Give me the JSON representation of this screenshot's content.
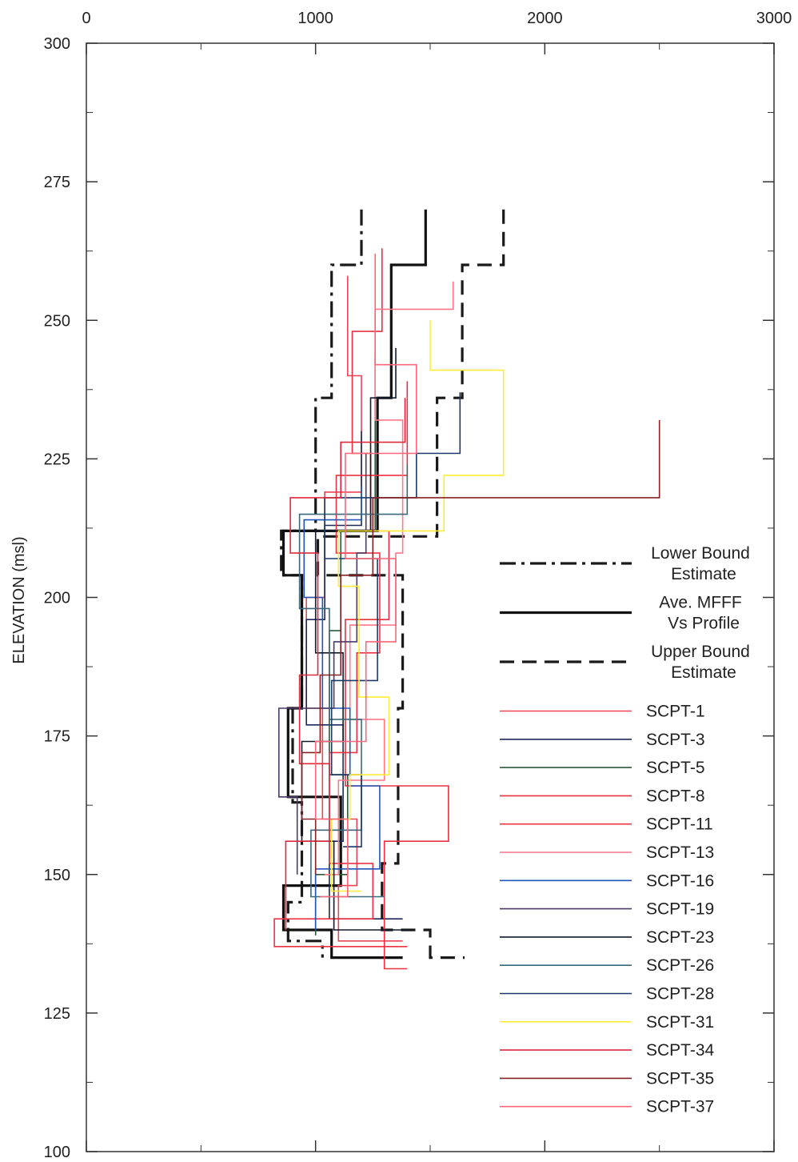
{
  "chart_data": {
    "type": "line",
    "title": "",
    "xlabel": "",
    "ylabel": "ELEVATION (msl)",
    "xlim": [
      0,
      3000
    ],
    "ylim": [
      100,
      300
    ],
    "x_ticks": [
      0,
      1000,
      2000,
      3000
    ],
    "x_tick_labels": [
      "0",
      "1000",
      "2000",
      "3000"
    ],
    "y_ticks": [
      100,
      125,
      150,
      175,
      200,
      225,
      250,
      275,
      300
    ],
    "y_tick_labels": [
      "100",
      "125",
      "150",
      "175",
      "200",
      "225",
      "250",
      "275",
      "300"
    ],
    "grid": false,
    "legend_position": "right",
    "series": [
      {
        "name": "Lower Bound Estimate",
        "color": "#1a1a1a",
        "dash": "dashdot",
        "points": [
          [
            1200,
            270
          ],
          [
            1200,
            260
          ],
          [
            1070,
            260
          ],
          [
            1070,
            236
          ],
          [
            1000,
            236
          ],
          [
            1000,
            212
          ],
          [
            850,
            212
          ],
          [
            850,
            204
          ],
          [
            940,
            204
          ],
          [
            940,
            180
          ],
          [
            900,
            180
          ],
          [
            900,
            163
          ],
          [
            940,
            163
          ],
          [
            940,
            145
          ],
          [
            880,
            145
          ],
          [
            880,
            138
          ],
          [
            1030,
            138
          ],
          [
            1030,
            135
          ]
        ]
      },
      {
        "name": "Ave. MFFF Vs Profile",
        "color": "#111111",
        "dash": "solid",
        "points": [
          [
            1480,
            270
          ],
          [
            1480,
            260
          ],
          [
            1330,
            260
          ],
          [
            1330,
            236
          ],
          [
            1270,
            236
          ],
          [
            1270,
            212
          ],
          [
            860,
            212
          ],
          [
            860,
            204
          ],
          [
            940,
            204
          ],
          [
            940,
            180
          ],
          [
            880,
            180
          ],
          [
            880,
            164
          ],
          [
            1110,
            164
          ],
          [
            1110,
            148
          ],
          [
            860,
            148
          ],
          [
            860,
            140
          ],
          [
            1070,
            140
          ],
          [
            1070,
            135
          ],
          [
            1380,
            135
          ]
        ]
      },
      {
        "name": "Upper Bound Estimate",
        "color": "#1a1a1a",
        "dash": "dashed",
        "points": [
          [
            1820,
            270
          ],
          [
            1820,
            260
          ],
          [
            1640,
            260
          ],
          [
            1640,
            236
          ],
          [
            1530,
            236
          ],
          [
            1530,
            211
          ],
          [
            1010,
            211
          ],
          [
            1010,
            204
          ],
          [
            1380,
            204
          ],
          [
            1380,
            180
          ],
          [
            1360,
            180
          ],
          [
            1360,
            152
          ],
          [
            1290,
            152
          ],
          [
            1290,
            140
          ],
          [
            1500,
            140
          ],
          [
            1500,
            135
          ],
          [
            1650,
            135
          ]
        ]
      },
      {
        "name": "SCPT-1",
        "color": "#ee4455",
        "dash": "solid",
        "points": [
          [
            1140,
            258
          ],
          [
            1140,
            240
          ],
          [
            1200,
            240
          ],
          [
            1200,
            219
          ],
          [
            1040,
            219
          ],
          [
            1040,
            200
          ],
          [
            960,
            200
          ],
          [
            960,
            180
          ],
          [
            1030,
            180
          ],
          [
            1030,
            160
          ],
          [
            1180,
            160
          ],
          [
            1180,
            148
          ],
          [
            1100,
            148
          ],
          [
            1100,
            138
          ],
          [
            1380,
            138
          ]
        ]
      },
      {
        "name": "SCPT-3",
        "color": "#1a2a5a",
        "dash": "solid",
        "points": [
          [
            1200,
            230
          ],
          [
            1200,
            213
          ],
          [
            1040,
            213
          ],
          [
            1040,
            196
          ],
          [
            960,
            196
          ],
          [
            960,
            177
          ],
          [
            1120,
            177
          ],
          [
            1120,
            156
          ],
          [
            1060,
            156
          ],
          [
            1060,
            142
          ],
          [
            1380,
            142
          ]
        ]
      },
      {
        "name": "SCPT-5",
        "color": "#2a5a3a",
        "dash": "solid",
        "points": [
          [
            1260,
            244
          ],
          [
            1260,
            212
          ],
          [
            1110,
            212
          ],
          [
            1110,
            194
          ],
          [
            1060,
            194
          ],
          [
            1060,
            168
          ],
          [
            1140,
            168
          ],
          [
            1140,
            150
          ],
          [
            1000,
            150
          ],
          [
            1000,
            139
          ]
        ]
      },
      {
        "name": "SCPT-8",
        "color": "#e83040",
        "dash": "solid",
        "points": [
          [
            1290,
            263
          ],
          [
            1290,
            248
          ],
          [
            1160,
            248
          ],
          [
            1160,
            226
          ],
          [
            1240,
            226
          ],
          [
            1240,
            212
          ],
          [
            1320,
            212
          ],
          [
            1320,
            196
          ],
          [
            1130,
            196
          ],
          [
            1130,
            166
          ],
          [
            1580,
            166
          ],
          [
            1580,
            156
          ],
          [
            1300,
            156
          ],
          [
            1300,
            133
          ],
          [
            1400,
            133
          ]
        ]
      },
      {
        "name": "SCPT-11",
        "color": "#ee3344",
        "dash": "solid",
        "points": [
          [
            1400,
            239
          ],
          [
            1400,
            222
          ],
          [
            1090,
            222
          ],
          [
            1090,
            208
          ],
          [
            1280,
            208
          ],
          [
            1280,
            190
          ],
          [
            1180,
            190
          ],
          [
            1180,
            172
          ],
          [
            1060,
            172
          ],
          [
            1060,
            152
          ],
          [
            1250,
            152
          ],
          [
            1250,
            142
          ],
          [
            820,
            142
          ],
          [
            820,
            137
          ],
          [
            1400,
            137
          ]
        ]
      },
      {
        "name": "SCPT-13",
        "color": "#ff7788",
        "dash": "solid",
        "points": [
          [
            1600,
            257
          ],
          [
            1600,
            252
          ],
          [
            1260,
            252
          ],
          [
            1260,
            232
          ],
          [
            1380,
            232
          ],
          [
            1380,
            208
          ],
          [
            1350,
            208
          ],
          [
            1350,
            195
          ],
          [
            1150,
            195
          ],
          [
            1150,
            178
          ],
          [
            1300,
            178
          ],
          [
            1300,
            167
          ],
          [
            1100,
            167
          ],
          [
            1100,
            150
          ],
          [
            1040,
            150
          ]
        ]
      },
      {
        "name": "SCPT-16",
        "color": "#2255bb",
        "dash": "solid",
        "points": [
          [
            1200,
            220
          ],
          [
            1200,
            214
          ],
          [
            950,
            214
          ],
          [
            950,
            200
          ],
          [
            1030,
            200
          ],
          [
            1030,
            180
          ],
          [
            1150,
            180
          ],
          [
            1150,
            166
          ],
          [
            1280,
            166
          ],
          [
            1280,
            151
          ],
          [
            1000,
            151
          ],
          [
            1000,
            140
          ]
        ]
      },
      {
        "name": "SCPT-19",
        "color": "#4a3a6a",
        "dash": "solid",
        "points": [
          [
            1220,
            226
          ],
          [
            1220,
            208
          ],
          [
            1180,
            208
          ],
          [
            1180,
            192
          ],
          [
            1080,
            192
          ],
          [
            1080,
            180
          ],
          [
            840,
            180
          ],
          [
            840,
            164
          ],
          [
            920,
            164
          ],
          [
            920,
            150
          ]
        ]
      },
      {
        "name": "SCPT-23",
        "color": "#111a2a",
        "dash": "solid",
        "points": [
          [
            1350,
            245
          ],
          [
            1350,
            236
          ],
          [
            1240,
            236
          ],
          [
            1240,
            212
          ],
          [
            1000,
            212
          ],
          [
            1000,
            190
          ],
          [
            1120,
            190
          ],
          [
            1120,
            174
          ],
          [
            940,
            174
          ],
          [
            940,
            156
          ],
          [
            1080,
            156
          ],
          [
            1080,
            140
          ],
          [
            1400,
            140
          ]
        ]
      },
      {
        "name": "SCPT-26",
        "color": "#3a6a7a",
        "dash": "solid",
        "points": [
          [
            1400,
            224
          ],
          [
            1400,
            215
          ],
          [
            930,
            215
          ],
          [
            930,
            198
          ],
          [
            1060,
            198
          ],
          [
            1060,
            178
          ],
          [
            1200,
            178
          ],
          [
            1200,
            158
          ],
          [
            980,
            158
          ],
          [
            980,
            146
          ],
          [
            1300,
            146
          ]
        ]
      },
      {
        "name": "SCPT-28",
        "color": "#1a3a6a",
        "dash": "solid",
        "points": [
          [
            1630,
            237
          ],
          [
            1630,
            226
          ],
          [
            1440,
            226
          ],
          [
            1440,
            218
          ],
          [
            1040,
            218
          ],
          [
            1040,
            207
          ],
          [
            1270,
            207
          ],
          [
            1270,
            185
          ],
          [
            1070,
            185
          ],
          [
            1070,
            168
          ],
          [
            1200,
            168
          ],
          [
            1200,
            155
          ],
          [
            1120,
            155
          ]
        ]
      },
      {
        "name": "SCPT-31",
        "color": "#ffee33",
        "dash": "solid",
        "points": [
          [
            1500,
            250
          ],
          [
            1500,
            241
          ],
          [
            1820,
            241
          ],
          [
            1820,
            222
          ],
          [
            1560,
            222
          ],
          [
            1560,
            212
          ],
          [
            1100,
            212
          ],
          [
            1100,
            202
          ],
          [
            1190,
            202
          ],
          [
            1190,
            182
          ],
          [
            1320,
            182
          ],
          [
            1320,
            168
          ],
          [
            1150,
            168
          ],
          [
            1150,
            160
          ],
          [
            1070,
            160
          ],
          [
            1070,
            147
          ],
          [
            1200,
            147
          ]
        ]
      },
      {
        "name": "SCPT-34",
        "color": "#dd2a3a",
        "dash": "solid",
        "points": [
          [
            1390,
            236
          ],
          [
            1390,
            228
          ],
          [
            1110,
            228
          ],
          [
            1110,
            218
          ],
          [
            890,
            218
          ],
          [
            890,
            208
          ],
          [
            1010,
            208
          ],
          [
            1010,
            186
          ],
          [
            930,
            186
          ],
          [
            930,
            170
          ],
          [
            1060,
            170
          ],
          [
            1060,
            156
          ],
          [
            870,
            156
          ],
          [
            870,
            140
          ]
        ]
      },
      {
        "name": "SCPT-35",
        "color": "#882222",
        "dash": "solid",
        "points": [
          [
            2500,
            232
          ],
          [
            2500,
            218
          ],
          [
            1250,
            218
          ],
          [
            1250,
            204
          ],
          [
            1110,
            204
          ],
          [
            1110,
            186
          ],
          [
            1020,
            186
          ],
          [
            1020,
            172
          ],
          [
            940,
            172
          ],
          [
            940,
            160
          ],
          [
            1000,
            160
          ],
          [
            1000,
            150
          ]
        ]
      },
      {
        "name": "SCPT-37",
        "color": "#ff6677",
        "dash": "solid",
        "points": [
          [
            1260,
            262
          ],
          [
            1260,
            242
          ],
          [
            1440,
            242
          ],
          [
            1440,
            226
          ],
          [
            1130,
            226
          ],
          [
            1130,
            207
          ],
          [
            1350,
            207
          ],
          [
            1350,
            192
          ],
          [
            1220,
            192
          ],
          [
            1220,
            174
          ],
          [
            1000,
            174
          ],
          [
            1000,
            160
          ],
          [
            1140,
            160
          ],
          [
            1140,
            146
          ],
          [
            1020,
            146
          ]
        ]
      }
    ]
  }
}
